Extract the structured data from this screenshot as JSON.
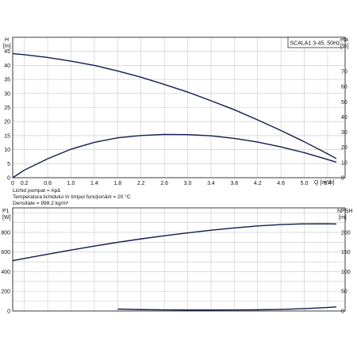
{
  "chart_data": [
    {
      "type": "line",
      "title": "SCALA1 3-45, 50Hz",
      "xlabel": "Q [m³/h]",
      "ylabel_left": [
        "H",
        "[m]"
      ],
      "ylabel_right": [
        "eta",
        "[%]"
      ],
      "xlim": [
        0,
        5.7
      ],
      "ylim_left": [
        0,
        50
      ],
      "ylim_right": [
        0,
        92.5
      ],
      "x_ticks": [
        "0",
        "0.2",
        "0.6",
        "1.0",
        "1.4",
        "1.8",
        "2.2",
        "2.6",
        "3.0",
        "3.4",
        "3.8",
        "4.2",
        "4.6",
        "5.0",
        "5.4"
      ],
      "x_tick_values": [
        0,
        0.2,
        0.6,
        1.0,
        1.4,
        1.8,
        2.2,
        2.6,
        3.0,
        3.4,
        3.8,
        4.2,
        4.6,
        5.0,
        5.4
      ],
      "y_left_ticks": [
        0,
        5,
        10,
        15,
        20,
        25,
        30,
        35,
        40,
        45
      ],
      "y_right_ticks": [
        0,
        10,
        20,
        30,
        40,
        50,
        60,
        70
      ],
      "grid": true,
      "series": [
        {
          "axis": "left",
          "x": [
            0,
            0.2,
            0.6,
            1.0,
            1.4,
            1.8,
            2.2,
            2.6,
            3.0,
            3.4,
            3.8,
            4.2,
            4.6,
            5.0,
            5.4,
            5.55
          ],
          "y": [
            44.2,
            43.8,
            42.8,
            41.5,
            40.0,
            38.0,
            35.8,
            33.2,
            30.5,
            27.4,
            24.2,
            20.6,
            16.8,
            12.8,
            8.5,
            6.8
          ]
        },
        {
          "axis": "right",
          "x": [
            0,
            0.2,
            0.6,
            1.0,
            1.4,
            1.8,
            2.2,
            2.6,
            3.0,
            3.4,
            3.8,
            4.2,
            4.6,
            5.0,
            5.4,
            5.55
          ],
          "y": [
            0,
            5,
            12.5,
            18.8,
            23.3,
            26.3,
            27.8,
            28.5,
            28.4,
            27.6,
            25.9,
            23.5,
            20.3,
            16.5,
            12.0,
            10.2
          ]
        }
      ]
    },
    {
      "type": "line",
      "xlabel": "",
      "ylabel_left": [
        "P1",
        "[W]"
      ],
      "ylabel_right": [
        "NPSH",
        "[m]"
      ],
      "xlim": [
        0,
        5.7
      ],
      "ylim_left": [
        0,
        1050
      ],
      "ylim_right": [
        0,
        262
      ],
      "y_left_ticks": [
        0,
        200,
        400,
        600,
        800
      ],
      "y_right_ticks": [
        0,
        50,
        100,
        150,
        200
      ],
      "grid": true,
      "series": [
        {
          "axis": "left",
          "x": [
            0,
            0.2,
            0.6,
            1.0,
            1.4,
            1.8,
            2.2,
            2.6,
            3.0,
            3.4,
            3.8,
            4.2,
            4.6,
            5.0,
            5.4,
            5.55
          ],
          "y": [
            512,
            535,
            578,
            620,
            661,
            699,
            734,
            766,
            795,
            822,
            846,
            866,
            880,
            887,
            888,
            886
          ]
        },
        {
          "axis": "right",
          "x": [
            1.8,
            2.2,
            2.6,
            3.0,
            3.4,
            3.8,
            4.2,
            4.6,
            5.0,
            5.4,
            5.55
          ],
          "y": [
            5,
            3.5,
            2.8,
            2.5,
            2.5,
            2.6,
            3.0,
            4.0,
            6.0,
            9.0,
            10.5
          ]
        }
      ]
    }
  ],
  "info": {
    "line1": "Lichid pompat = Apă",
    "line2": "Temperatura lichidului în timpul funcţionării = 20 °C",
    "line3": "Densitate = 998.2 kg/m³"
  }
}
